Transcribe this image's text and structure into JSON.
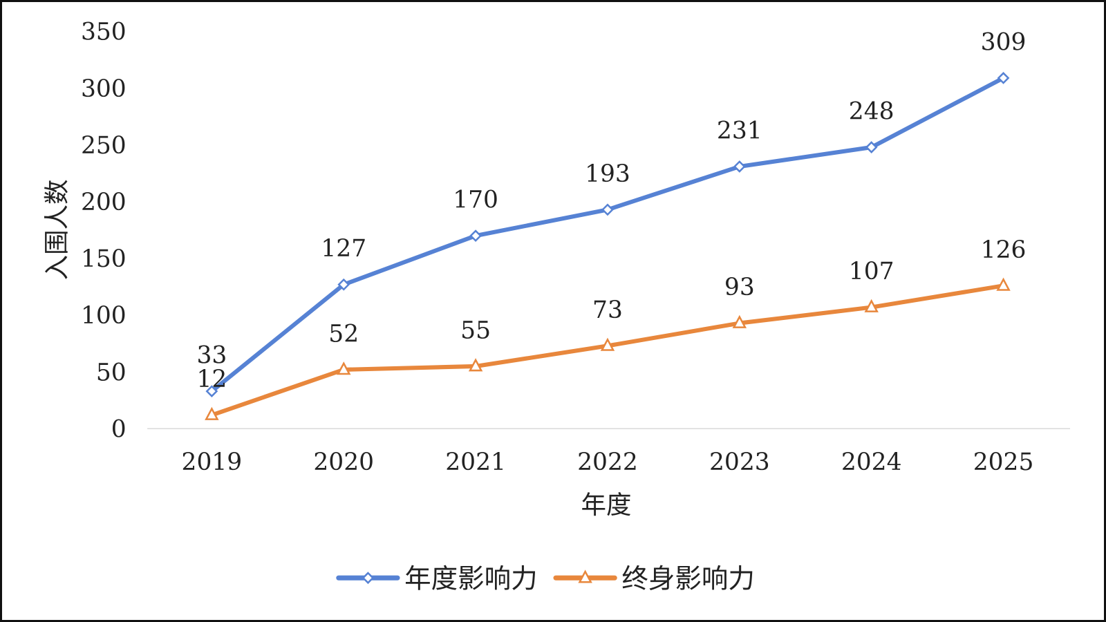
{
  "chart_data": {
    "type": "line",
    "title": "",
    "xlabel": "年度",
    "ylabel": "入围人数",
    "categories": [
      "2019",
      "2020",
      "2021",
      "2022",
      "2023",
      "2024",
      "2025"
    ],
    "ylim": [
      0,
      350
    ],
    "yticks": [
      "0",
      "50",
      "100",
      "150",
      "200",
      "250",
      "300",
      "350"
    ],
    "grid": false,
    "legend_position": "bottom",
    "series": [
      {
        "name": "年度影响力",
        "values": [
          33,
          127,
          170,
          193,
          231,
          248,
          309
        ],
        "color": "#5682d4",
        "marker": "diamond"
      },
      {
        "name": "终身影响力",
        "values": [
          12,
          52,
          55,
          73,
          93,
          107,
          126
        ],
        "color": "#e8873c",
        "marker": "triangle"
      }
    ]
  }
}
